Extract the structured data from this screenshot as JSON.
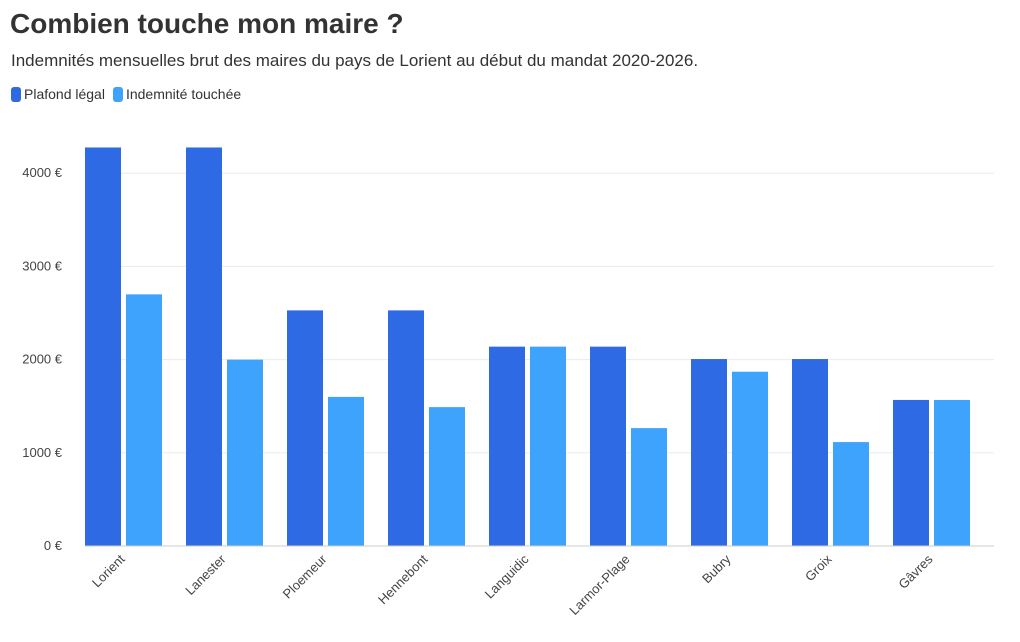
{
  "title": "Combien touche mon maire ?",
  "subtitle": "Indemnités mensuelles brut des maires du pays de Lorient au début du mandat 2020-2026.",
  "colors": {
    "plafond": "#2e6ae4",
    "indemnite": "#3ea3fd",
    "grid": "#ececec",
    "axis": "#cccccc"
  },
  "chart_data": {
    "type": "bar",
    "categories": [
      "Lorient",
      "Lanester",
      "Ploemeur",
      "Hennebont",
      "Languidic",
      "Larmor-Plage",
      "Bubry",
      "Groix",
      "Gâvres"
    ],
    "series": [
      {
        "name": "Plafond légal",
        "values": [
          4276,
          4276,
          2528,
          2528,
          2139,
          2139,
          2006,
          2006,
          1567
        ]
      },
      {
        "name": "Indemnité touchée",
        "values": [
          2700,
          2000,
          1600,
          1490,
          2139,
          1265,
          1870,
          1115,
          1567
        ]
      }
    ],
    "yticks": [
      0,
      1000,
      2000,
      3000,
      4000
    ],
    "ytick_labels": [
      "0 €",
      "1000 €",
      "2000 €",
      "3000 €",
      "4000 €"
    ],
    "ylim": [
      0,
      4500
    ],
    "grid": true,
    "legend_position": "top-left"
  }
}
